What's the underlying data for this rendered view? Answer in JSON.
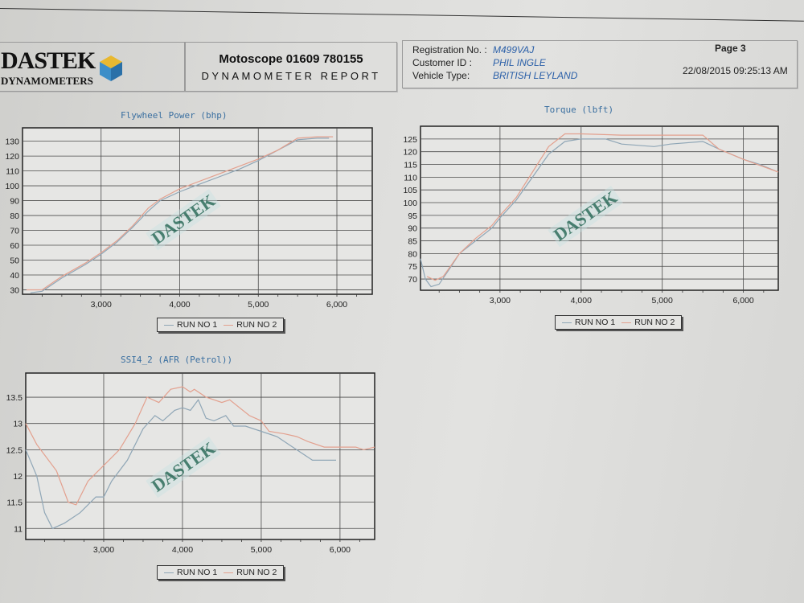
{
  "header": {
    "logo": {
      "name": "DASTEK",
      "sub": "DYNAMOMETERS"
    },
    "company_line": "Motoscope 01609 780155",
    "report_title": "DYNAMOMETER REPORT",
    "registration_label": "Registration No. :",
    "registration_value": "M499VAJ",
    "customer_label": "Customer ID :",
    "customer_value": "PHIL INGLE",
    "vehicle_label": "Vehicle Type:",
    "vehicle_value": "BRITISH LEYLAND",
    "page": "Page 3",
    "datetime": "22/08/2015 09:25:13 AM"
  },
  "watermark": "DASTEK",
  "colors": {
    "run1": "#8fa6b6",
    "run2": "#e3a08e",
    "grid": "#4a4a4a",
    "title": "#3a6fa0"
  },
  "chart_data": [
    {
      "type": "line",
      "title": "Flywheel Power (bhp)",
      "xlim": [
        2000,
        6450
      ],
      "ylim": [
        27,
        139
      ],
      "xticks": [
        3000,
        4000,
        5000,
        6000
      ],
      "xtick_labels": [
        "3,000",
        "4,000",
        "5,000",
        "6,000"
      ],
      "yticks": [
        30,
        40,
        50,
        60,
        70,
        80,
        90,
        100,
        110,
        120,
        130
      ],
      "grid": true,
      "legend": "bottom",
      "series": [
        {
          "name": "RUN NO 1",
          "x": [
            2100,
            2250,
            2500,
            2800,
            3000,
            3200,
            3400,
            3600,
            3750,
            4000,
            4250,
            4500,
            4750,
            5000,
            5250,
            5500,
            5750,
            5900
          ],
          "y": [
            28,
            29,
            38,
            47,
            54,
            62,
            72,
            83,
            90,
            96,
            101,
            106,
            111,
            117,
            124,
            131,
            132,
            132
          ]
        },
        {
          "name": "RUN NO 2",
          "x": [
            2050,
            2250,
            2500,
            2800,
            3000,
            3200,
            3400,
            3600,
            3750,
            4000,
            4250,
            4500,
            4750,
            5000,
            5250,
            5500,
            5750,
            5950
          ],
          "y": [
            30,
            30,
            39,
            48,
            55,
            63,
            73,
            85,
            91,
            98,
            103,
            108,
            113,
            118,
            124,
            132,
            133,
            133
          ]
        }
      ]
    },
    {
      "type": "line",
      "title": "Torque (lbft)",
      "xlim": [
        2020,
        6430
      ],
      "ylim": [
        65.6,
        130
      ],
      "xticks": [
        3000,
        4000,
        5000,
        6000
      ],
      "xtick_labels": [
        "3,000",
        "4,000",
        "5,000",
        "6,000"
      ],
      "yticks": [
        70,
        75,
        80,
        85,
        90,
        95,
        100,
        105,
        110,
        115,
        120,
        125
      ],
      "grid": true,
      "legend": "bottom",
      "series": [
        {
          "name": "RUN NO 1",
          "x": [
            2020,
            2080,
            2150,
            2250,
            2400,
            2500,
            2700,
            2900,
            3000,
            3200,
            3400,
            3600,
            3800,
            4000,
            4300,
            4500,
            4900,
            5100,
            5500,
            5700,
            6000,
            6200,
            6430
          ],
          "y": [
            78,
            70,
            67,
            68,
            75,
            80,
            85,
            90,
            94,
            101,
            110,
            119,
            124,
            125,
            125,
            123,
            122,
            123,
            124,
            121,
            117,
            115,
            112
          ]
        },
        {
          "name": "RUN NO 2",
          "x": [
            2100,
            2200,
            2300,
            2500,
            2700,
            2900,
            3000,
            3200,
            3400,
            3600,
            3800,
            4000,
            4500,
            5000,
            5500,
            5700,
            6000,
            6430
          ],
          "y": [
            71,
            69.5,
            71,
            80,
            86,
            91,
            95,
            102,
            112,
            122,
            127,
            127,
            126.5,
            126.5,
            126.5,
            121,
            117,
            112
          ]
        }
      ]
    },
    {
      "type": "line",
      "title": "SSI4_2 (AFR (Petrol))",
      "xlim": [
        2010,
        6440
      ],
      "ylim": [
        10.79,
        13.96
      ],
      "xticks": [
        3000,
        4000,
        5000,
        6000
      ],
      "xtick_labels": [
        "3,000",
        "4,000",
        "5,000",
        "6,000"
      ],
      "yticks": [
        11,
        11.5,
        12,
        12.5,
        13,
        13.5
      ],
      "grid": true,
      "legend": "bottom",
      "series": [
        {
          "name": "RUN NO 1",
          "x": [
            2010,
            2150,
            2250,
            2350,
            2500,
            2700,
            2900,
            3000,
            3100,
            3300,
            3500,
            3650,
            3750,
            3900,
            4000,
            4100,
            4200,
            4300,
            4400,
            4550,
            4650,
            4800,
            5000,
            5200,
            5400,
            5500,
            5650,
            5800,
            5950
          ],
          "y": [
            12.5,
            12.0,
            11.3,
            11.0,
            11.1,
            11.3,
            11.6,
            11.6,
            11.9,
            12.3,
            12.9,
            13.15,
            13.05,
            13.25,
            13.3,
            13.25,
            13.45,
            13.1,
            13.05,
            13.15,
            12.95,
            12.95,
            12.85,
            12.75,
            12.55,
            12.45,
            12.3,
            12.3,
            12.3
          ]
        },
        {
          "name": "RUN NO 2",
          "x": [
            2010,
            2150,
            2400,
            2550,
            2650,
            2800,
            3000,
            3200,
            3400,
            3550,
            3700,
            3850,
            4000,
            4100,
            4150,
            4300,
            4500,
            4600,
            4850,
            5000,
            5100,
            5300,
            5450,
            5600,
            5800,
            6000,
            6200,
            6300,
            6440
          ],
          "y": [
            13.0,
            12.6,
            12.1,
            11.5,
            11.45,
            11.9,
            12.2,
            12.5,
            13.0,
            13.5,
            13.4,
            13.65,
            13.7,
            13.6,
            13.65,
            13.5,
            13.4,
            13.45,
            13.15,
            13.05,
            12.85,
            12.8,
            12.75,
            12.65,
            12.55,
            12.55,
            12.55,
            12.5,
            12.55
          ]
        }
      ]
    }
  ]
}
